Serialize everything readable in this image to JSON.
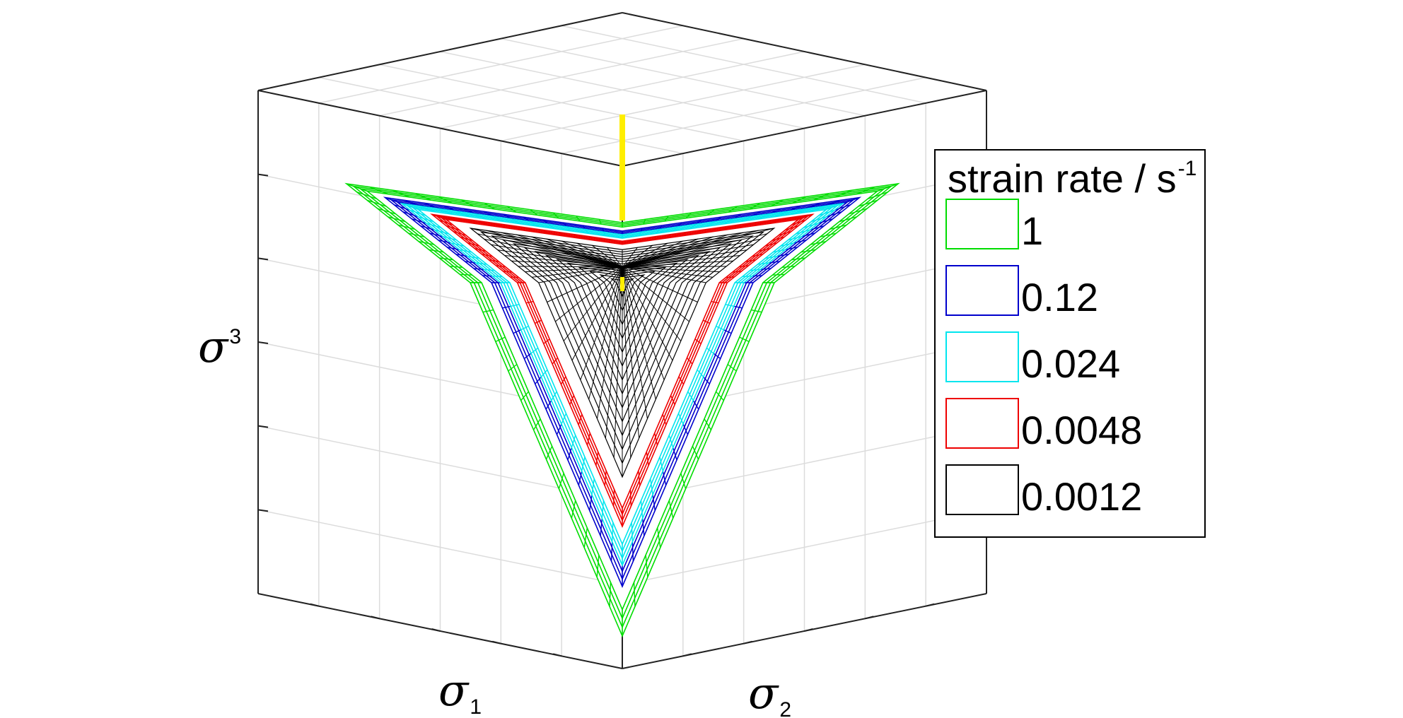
{
  "chart_data": {
    "type": "surface3d",
    "title": "",
    "axes": {
      "x": {
        "symbol": "σ",
        "subscript": "1"
      },
      "y": {
        "symbol": "σ",
        "subscript": "2"
      },
      "z": {
        "symbol": "σ",
        "subscript": "3"
      }
    },
    "view": "projection along the hydrostatic axis (σ1 = σ2 = σ3)",
    "grid": true,
    "legend": {
      "position": "right",
      "title": "strain rate / s",
      "title_superscript": "-1"
    },
    "series": [
      {
        "name": "1",
        "color": "#00dd00",
        "relative_size": 1.0
      },
      {
        "name": "0.12",
        "color": "#0000cc",
        "relative_size": 0.86
      },
      {
        "name": "0.024",
        "color": "#00e5ee",
        "relative_size": 0.8
      },
      {
        "name": "0.0048",
        "color": "#ee0000",
        "relative_size": 0.69
      },
      {
        "name": "0.0012",
        "color": "#000000",
        "relative_size": 0.55
      }
    ],
    "hydrostatic_axis_color": "#ffee00"
  }
}
